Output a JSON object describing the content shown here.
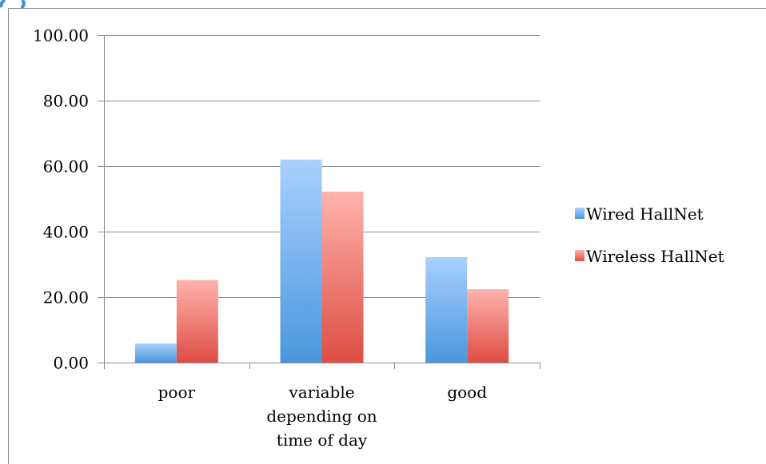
{
  "chart_data": {
    "type": "bar",
    "categories": [
      [
        "poor"
      ],
      [
        "variable",
        "depending on",
        "time of day"
      ],
      [
        "good"
      ]
    ],
    "series": [
      {
        "name": "Wired HallNet",
        "values": [
          5.8,
          62.0,
          32.2
        ]
      },
      {
        "name": "Wireless HallNet",
        "values": [
          25.2,
          52.2,
          22.4
        ]
      }
    ],
    "ylim": [
      0,
      100
    ],
    "yticks": [
      "0.00",
      "20.00",
      "40.00",
      "60.00",
      "80.00",
      "100.00"
    ],
    "ytick_values": [
      0,
      20,
      40,
      60,
      80,
      100
    ],
    "grid": true,
    "legend_position": "right",
    "colors": {
      "wired_top": "#a9d0ff",
      "wired_bottom": "#4a97dc",
      "wireless_top": "#ffb3ad",
      "wireless_bottom": "#dd4d43",
      "grid": "#8c8c8c",
      "accent": "#3b8fd6"
    }
  }
}
